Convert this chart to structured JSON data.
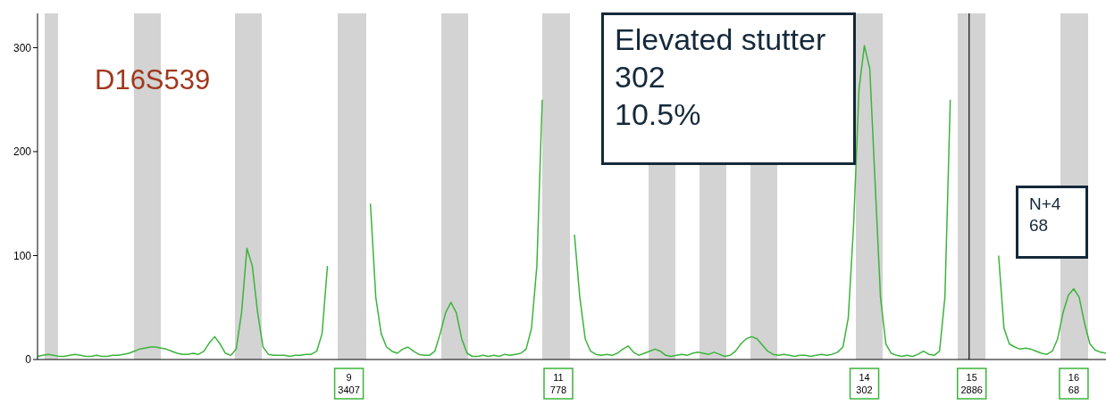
{
  "chart_data": {
    "type": "line",
    "title": "D16S539",
    "categories": [
      null,
      null,
      null,
      null,
      null,
      null,
      null,
      null,
      null,
      null,
      null,
      null,
      null,
      null,
      null,
      null,
      null,
      null,
      null,
      null,
      null,
      null,
      null,
      null,
      null,
      null,
      null,
      null,
      null,
      null,
      null,
      null,
      null,
      null,
      null,
      null,
      null,
      null,
      null,
      null,
      null,
      null,
      null,
      null,
      null,
      null,
      null,
      null,
      null,
      null,
      null,
      null,
      null,
      null,
      null,
      null,
      null,
      null,
      "9\n3407",
      null,
      null,
      null,
      null,
      null,
      null,
      null,
      null,
      null,
      null,
      null,
      null,
      null,
      null,
      null,
      null,
      null,
      null,
      null,
      null,
      null,
      null,
      null,
      null,
      null,
      null,
      null,
      null,
      null,
      null,
      null,
      null,
      null,
      null,
      null,
      null,
      null,
      null,
      "11\n778",
      null,
      null,
      null,
      null,
      null,
      null,
      null,
      null,
      null,
      null,
      null,
      null,
      null,
      null,
      null,
      null,
      null,
      null,
      null,
      null,
      null,
      null,
      null,
      null,
      null,
      null,
      null,
      null,
      null,
      null,
      null,
      null,
      null,
      null,
      null,
      null,
      null,
      null,
      null,
      null,
      null,
      null,
      null,
      null,
      null,
      null,
      null,
      null,
      null,
      null,
      null,
      null,
      null,
      null,
      null,
      null,
      "14\n302",
      null,
      null,
      null,
      null,
      null,
      null,
      null,
      null,
      null,
      null,
      null,
      null,
      null,
      null,
      null,
      null,
      null,
      null,
      null,
      "15\n2886",
      null,
      null,
      null,
      null,
      null,
      null,
      null,
      null,
      null,
      null,
      null,
      null,
      null,
      null,
      null,
      null,
      null,
      null,
      "16\n68",
      null,
      null,
      null,
      null,
      null,
      null
    ],
    "series": [
      {
        "color": "#3cb43c",
        "values": [
          3,
          4,
          5,
          4,
          3,
          3,
          4,
          5,
          4,
          3,
          3,
          4,
          3,
          3,
          4,
          4,
          5,
          6,
          8,
          10,
          11,
          12,
          12,
          11,
          10,
          8,
          6,
          5,
          5,
          6,
          5,
          8,
          16,
          22,
          15,
          6,
          4,
          10,
          45,
          107,
          90,
          45,
          12,
          5,
          4,
          4,
          4,
          3,
          4,
          4,
          5,
          5,
          8,
          25,
          90,
          null,
          null,
          null,
          null,
          null,
          null,
          null,
          150,
          60,
          25,
          12,
          8,
          6,
          10,
          12,
          8,
          5,
          4,
          4,
          8,
          25,
          45,
          55,
          45,
          20,
          6,
          3,
          3,
          4,
          3,
          4,
          3,
          5,
          4,
          5,
          6,
          10,
          30,
          90,
          250,
          null,
          null,
          null,
          null,
          null,
          120,
          60,
          20,
          8,
          5,
          4,
          5,
          4,
          6,
          10,
          13,
          7,
          4,
          6,
          8,
          10,
          8,
          4,
          3,
          4,
          5,
          4,
          6,
          7,
          6,
          5,
          7,
          5,
          3,
          4,
          8,
          15,
          20,
          22,
          20,
          14,
          8,
          5,
          4,
          5,
          4,
          3,
          4,
          4,
          3,
          4,
          5,
          4,
          5,
          7,
          12,
          40,
          130,
          260,
          302,
          280,
          170,
          60,
          15,
          6,
          4,
          3,
          4,
          3,
          5,
          8,
          5,
          4,
          8,
          60,
          250,
          null,
          null,
          null,
          null,
          null,
          null,
          null,
          null,
          100,
          30,
          15,
          12,
          10,
          11,
          10,
          8,
          6,
          5,
          8,
          20,
          45,
          62,
          68,
          60,
          35,
          15,
          9,
          7,
          6
        ]
      }
    ],
    "ylim": [
      0,
      333
    ],
    "yticks": [
      0,
      100,
      200,
      300
    ],
    "annotations": [
      "Elevated stutter\n302\n10.5%",
      "N+4\n68"
    ]
  }
}
